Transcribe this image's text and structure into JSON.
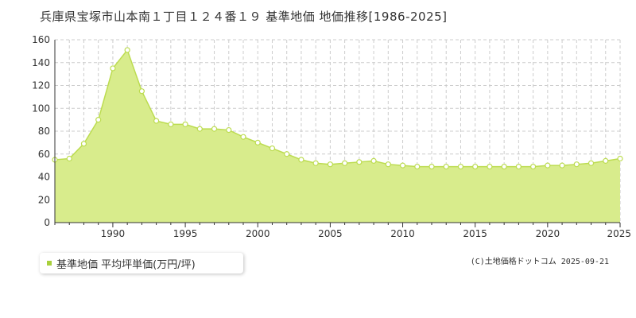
{
  "chart_data": {
    "type": "area",
    "title": "兵庫県宝塚市山本南１丁目１２４番１９ 基準地価 地価推移[1986-2025]",
    "xlabel": "",
    "ylabel": "",
    "x": [
      1986,
      1987,
      1988,
      1989,
      1990,
      1991,
      1992,
      1993,
      1994,
      1995,
      1996,
      1997,
      1998,
      1999,
      2000,
      2001,
      2002,
      2003,
      2004,
      2005,
      2006,
      2007,
      2008,
      2009,
      2010,
      2011,
      2012,
      2013,
      2014,
      2015,
      2016,
      2017,
      2018,
      2019,
      2020,
      2021,
      2022,
      2023,
      2024,
      2025
    ],
    "series": [
      {
        "name": "基準地価 平均坪単価(万円/坪)",
        "values": [
          55,
          56,
          69,
          90,
          135,
          151,
          115,
          89,
          86,
          86,
          82,
          82,
          81,
          75,
          70,
          65,
          60,
          55,
          52,
          51,
          52,
          53,
          54,
          51,
          50,
          49,
          49,
          49,
          49,
          49,
          49,
          49,
          49,
          49,
          50,
          50,
          51,
          52,
          54,
          56
        ]
      }
    ],
    "xlim": [
      1986,
      2025
    ],
    "ylim": [
      0,
      160
    ],
    "yticks": [
      0,
      20,
      40,
      60,
      80,
      100,
      120,
      140,
      160
    ],
    "xticks": [
      1990,
      1995,
      2000,
      2005,
      2010,
      2015,
      2020,
      2025
    ],
    "grid": true,
    "legend": "bottom-left",
    "colors": {
      "fill": "#d8ec8c",
      "line": "#bcdc50",
      "marker_fill": "#ffffff",
      "marker_stroke": "#bcdc50",
      "legend_swatch": "#a8d03c",
      "grid": "#cccccc"
    }
  },
  "copyright": "(C)土地価格ドットコム 2025-09-21"
}
